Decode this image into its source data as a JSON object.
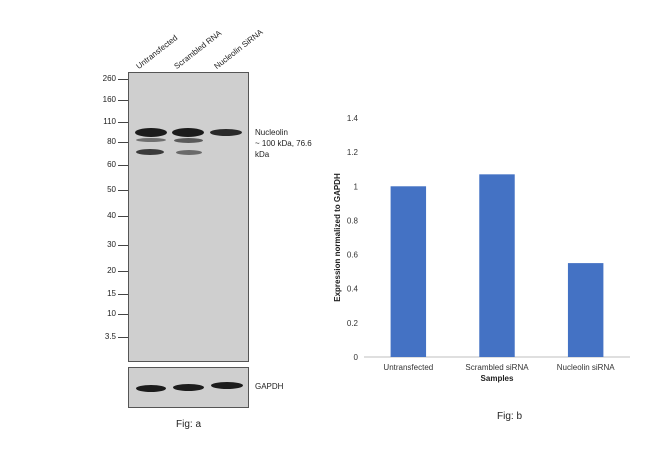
{
  "western_blot": {
    "lanes": [
      "Untransfected",
      "Scrambled RNA",
      "Nucleolin SiRNA"
    ],
    "mw_markers": [
      "260",
      "160",
      "110",
      "80",
      "60",
      "50",
      "40",
      "30",
      "20",
      "15",
      "10",
      "3.5"
    ],
    "target_label_line1": "Nucleolin",
    "target_label_line2": "~ 100 kDa, 76.6",
    "target_label_line3": "kDa",
    "loading_control_label": "GAPDH",
    "caption": "Fig: a"
  },
  "chart_data": {
    "type": "bar",
    "categories": [
      "Untransfected",
      "Scrambled siRNA",
      "Nucleolin siRNA"
    ],
    "values": [
      1.0,
      1.07,
      0.55
    ],
    "title": "",
    "xlabel": "Samples",
    "ylabel": "Expression normalized to GAPDH",
    "ylim": [
      0,
      1.4
    ],
    "yticks": [
      "0",
      "0.2",
      "0.4",
      "0.6",
      "0.8",
      "1",
      "1.2",
      "1.4"
    ],
    "bar_color": "#4472c4",
    "grid": false,
    "caption": "Fig: b"
  }
}
